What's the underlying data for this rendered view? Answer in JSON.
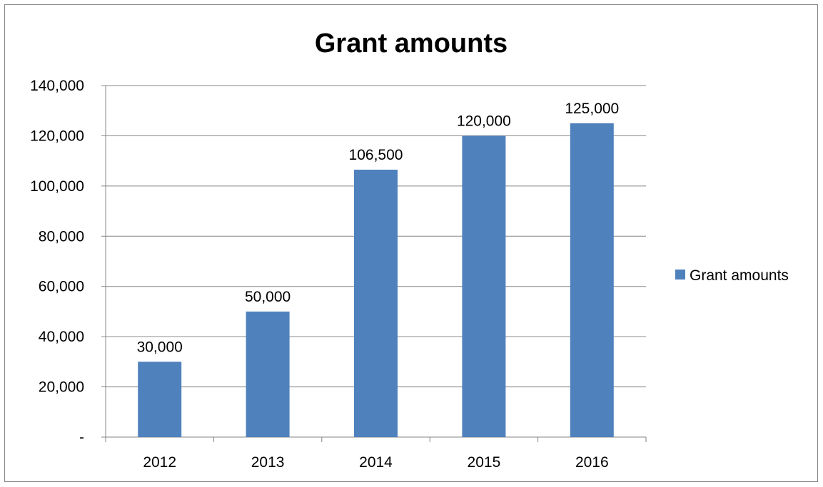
{
  "chart_data": {
    "type": "bar",
    "title": "Grant amounts",
    "xlabel": "",
    "ylabel": "",
    "categories": [
      "2012",
      "2013",
      "2014",
      "2015",
      "2016"
    ],
    "series": [
      {
        "name": "Grant amounts",
        "values": [
          30000,
          50000,
          106500,
          120000,
          125000
        ],
        "color": "#4f81bd"
      }
    ],
    "data_labels": [
      "30,000",
      "50,000",
      "106,500",
      "120,000",
      "125,000"
    ],
    "ylim": [
      0,
      140000
    ],
    "y_ticks": [
      0,
      20000,
      40000,
      60000,
      80000,
      100000,
      120000,
      140000
    ],
    "y_tick_labels": [
      "-",
      "20,000",
      "40,000",
      "60,000",
      "80,000",
      "100,000",
      "120,000",
      "140,000"
    ],
    "grid": true,
    "legend_position": "right",
    "colors": {
      "bar": "#4f81bd",
      "gridline": "#868686",
      "axis": "#868686",
      "frame": "#868686"
    }
  }
}
